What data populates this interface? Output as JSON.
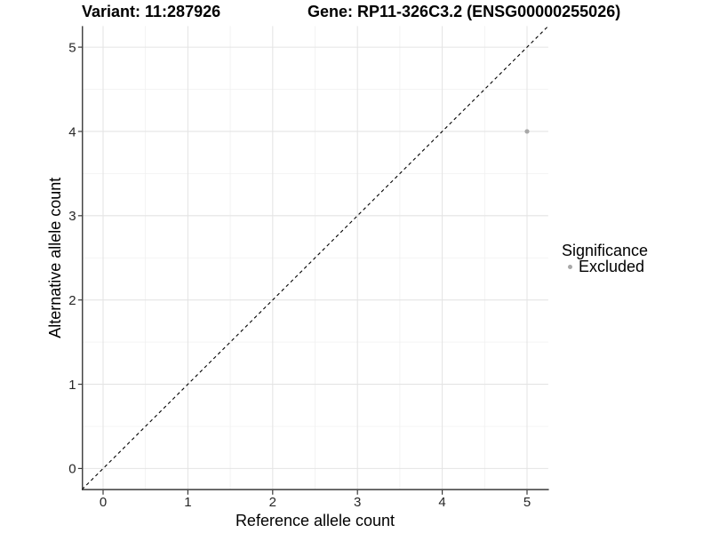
{
  "titles": {
    "variant": "Variant: 11:287926",
    "gene": "Gene: RP11-326C3.2 (ENSG00000255026)"
  },
  "chart_data": {
    "type": "scatter",
    "xlabel": "Reference allele count",
    "ylabel": "Alternative allele count",
    "xlim": [
      -0.25,
      5.25
    ],
    "ylim": [
      -0.25,
      5.25
    ],
    "xticks": [
      0,
      1,
      2,
      3,
      4,
      5
    ],
    "yticks": [
      0,
      1,
      2,
      3,
      4,
      5
    ],
    "x_minor": [
      0.5,
      1.5,
      2.5,
      3.5,
      4.5
    ],
    "y_minor": [
      0.5,
      1.5,
      2.5,
      3.5,
      4.5
    ],
    "grid": true,
    "points": [
      {
        "x": 5,
        "y": 4,
        "significance": "Excluded"
      }
    ],
    "identity_line": {
      "slope": 1,
      "intercept": 0,
      "style": "dashed"
    },
    "legend": {
      "position": "right",
      "title": "Significance",
      "entries": [
        {
          "label": "Excluded",
          "color": "#a8a8a8",
          "marker": "circle"
        }
      ]
    },
    "colors": {
      "background": "#ffffff",
      "point": "#a8a8a8",
      "grid_major": "#e4e4e4",
      "grid_minor": "#f0f0f0",
      "axis_line": "#3a3a3a",
      "tick_mark": "#3a3a3a",
      "tick_label": "#262626",
      "axis_title": "#000000",
      "abline": "#000000"
    }
  }
}
